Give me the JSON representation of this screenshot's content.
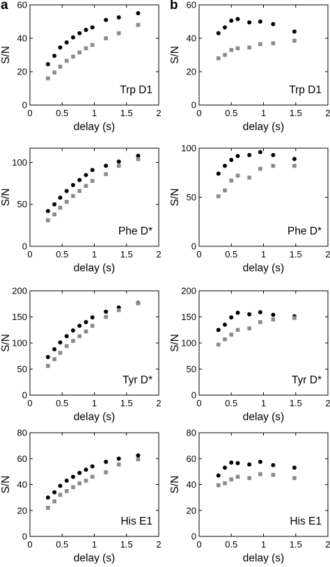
{
  "panel_labels": [
    "a",
    "b"
  ],
  "chart_data": [
    {
      "type": "scatter",
      "column": 0,
      "row": 0,
      "annotation": "Trp D1",
      "xlabel": "delay (s)",
      "ylabel": "S/N",
      "xlim": [
        0,
        2
      ],
      "ylim": [
        0,
        60
      ],
      "xticks": [
        0,
        0.5,
        1,
        1.5,
        2
      ],
      "xtick_labels": [
        "0",
        "0.5",
        "1",
        "1.5",
        "2"
      ],
      "yticks": [
        0,
        20,
        40,
        60
      ],
      "ytick_labels": [
        "0",
        "20",
        "40",
        "60"
      ],
      "series": [
        {
          "marker": "circle",
          "color": "#000000",
          "x": [
            0.28,
            0.38,
            0.47,
            0.57,
            0.67,
            0.77,
            0.87,
            0.97,
            1.18,
            1.38,
            1.68
          ],
          "y": [
            24.5,
            29.5,
            34.5,
            37.5,
            40.5,
            43,
            45,
            46.5,
            51,
            52.5,
            55
          ]
        },
        {
          "marker": "square",
          "color": "#8a8a8a",
          "x": [
            0.28,
            0.38,
            0.47,
            0.57,
            0.67,
            0.77,
            0.87,
            0.97,
            1.18,
            1.38,
            1.68
          ],
          "y": [
            16,
            19.5,
            23,
            26.5,
            29,
            31.5,
            34,
            36,
            40,
            43,
            48
          ]
        }
      ]
    },
    {
      "type": "scatter",
      "column": 1,
      "row": 0,
      "annotation": "Trp D1",
      "xlabel": "delay (s)",
      "ylabel": "S/N",
      "xlim": [
        0,
        2
      ],
      "ylim": [
        0,
        60
      ],
      "xticks": [
        0,
        0.5,
        1,
        1.5,
        2
      ],
      "xtick_labels": [
        "0",
        "0.5",
        "1",
        "1.5",
        "2"
      ],
      "yticks": [
        0,
        20,
        40,
        60
      ],
      "ytick_labels": [
        "0",
        "20",
        "40",
        "60"
      ],
      "series": [
        {
          "marker": "circle",
          "color": "#000000",
          "x": [
            0.3,
            0.4,
            0.5,
            0.6,
            0.78,
            0.95,
            1.15,
            1.48
          ],
          "y": [
            43,
            46.5,
            50.5,
            51.5,
            49.5,
            50,
            48.5,
            44
          ]
        },
        {
          "marker": "square",
          "color": "#8a8a8a",
          "x": [
            0.3,
            0.4,
            0.5,
            0.6,
            0.78,
            0.95,
            1.15,
            1.48
          ],
          "y": [
            28,
            30,
            33,
            34,
            34.5,
            36.5,
            37,
            38.5
          ]
        }
      ]
    },
    {
      "type": "scatter",
      "column": 0,
      "row": 1,
      "annotation": "Phe D*",
      "xlabel": "delay (s)",
      "ylabel": "S/N",
      "xlim": [
        0,
        2
      ],
      "ylim": [
        0,
        117
      ],
      "xticks": [
        0,
        0.5,
        1,
        1.5,
        2
      ],
      "xtick_labels": [
        "0",
        "0.5",
        "1",
        "1.5",
        "2"
      ],
      "yticks": [
        0,
        50,
        100
      ],
      "ytick_labels": [
        "0",
        "50",
        "100"
      ],
      "series": [
        {
          "marker": "circle",
          "color": "#000000",
          "x": [
            0.28,
            0.38,
            0.47,
            0.57,
            0.67,
            0.77,
            0.87,
            0.97,
            1.18,
            1.38,
            1.68
          ],
          "y": [
            42,
            50,
            58,
            66,
            73,
            79,
            85,
            91,
            96,
            101,
            108
          ]
        },
        {
          "marker": "square",
          "color": "#8a8a8a",
          "x": [
            0.28,
            0.38,
            0.47,
            0.57,
            0.67,
            0.77,
            0.87,
            0.97,
            1.18,
            1.38,
            1.68
          ],
          "y": [
            31,
            38,
            46,
            53,
            60,
            66,
            72,
            78,
            86,
            96,
            104
          ]
        }
      ]
    },
    {
      "type": "scatter",
      "column": 1,
      "row": 1,
      "annotation": "Phe D*",
      "xlabel": "delay (s)",
      "ylabel": "S/N",
      "xlim": [
        0,
        2
      ],
      "ylim": [
        0,
        100
      ],
      "xticks": [
        0,
        0.5,
        1,
        1.5,
        2
      ],
      "xtick_labels": [
        "0",
        "0.5",
        "1",
        "1.5",
        "2"
      ],
      "yticks": [
        0,
        50,
        100
      ],
      "ytick_labels": [
        "0",
        "50",
        "100"
      ],
      "series": [
        {
          "marker": "circle",
          "color": "#000000",
          "x": [
            0.3,
            0.4,
            0.5,
            0.6,
            0.78,
            0.95,
            1.15,
            1.48
          ],
          "y": [
            74,
            82,
            88,
            92,
            93,
            96,
            93,
            89
          ]
        },
        {
          "marker": "square",
          "color": "#8a8a8a",
          "x": [
            0.3,
            0.4,
            0.5,
            0.6,
            0.78,
            0.95,
            1.15,
            1.48
          ],
          "y": [
            51,
            57,
            67,
            72,
            70,
            79,
            82,
            82
          ]
        }
      ]
    },
    {
      "type": "scatter",
      "column": 0,
      "row": 2,
      "annotation": "Tyr D*",
      "xlabel": "delay (s)",
      "ylabel": "S/N",
      "xlim": [
        0,
        2
      ],
      "ylim": [
        0,
        200
      ],
      "xticks": [
        0,
        0.5,
        1,
        1.5,
        2
      ],
      "xtick_labels": [
        "0",
        "0.5",
        "1",
        "1.5",
        "2"
      ],
      "yticks": [
        0,
        50,
        100,
        150,
        200
      ],
      "ytick_labels": [
        "0",
        "50",
        "100",
        "150",
        "200"
      ],
      "series": [
        {
          "marker": "circle",
          "color": "#000000",
          "x": [
            0.28,
            0.38,
            0.47,
            0.57,
            0.67,
            0.77,
            0.87,
            0.97,
            1.18,
            1.38,
            1.68
          ],
          "y": [
            73,
            88,
            101,
            113,
            124,
            133,
            140,
            149,
            160,
            168,
            177
          ]
        },
        {
          "marker": "square",
          "color": "#8a8a8a",
          "x": [
            0.28,
            0.38,
            0.47,
            0.57,
            0.67,
            0.77,
            0.87,
            0.97,
            1.18,
            1.38,
            1.68
          ],
          "y": [
            56,
            69,
            81,
            94,
            104,
            113,
            122,
            133,
            150,
            163,
            176
          ]
        }
      ]
    },
    {
      "type": "scatter",
      "column": 1,
      "row": 2,
      "annotation": "Tyr D*",
      "xlabel": "delay (s)",
      "ylabel": "S/N",
      "xlim": [
        0,
        2
      ],
      "ylim": [
        0,
        200
      ],
      "xticks": [
        0,
        0.5,
        1,
        1.5,
        2
      ],
      "xtick_labels": [
        "0",
        "0.5",
        "1",
        "1.5",
        "2"
      ],
      "yticks": [
        0,
        50,
        100,
        150,
        200
      ],
      "ytick_labels": [
        "0",
        "50",
        "100",
        "150",
        "200"
      ],
      "series": [
        {
          "marker": "circle",
          "color": "#000000",
          "x": [
            0.3,
            0.4,
            0.5,
            0.6,
            0.78,
            0.95,
            1.15,
            1.48
          ],
          "y": [
            125,
            135,
            149,
            158,
            155,
            159,
            154,
            151
          ]
        },
        {
          "marker": "square",
          "color": "#8a8a8a",
          "x": [
            0.3,
            0.4,
            0.5,
            0.6,
            0.78,
            0.95,
            1.15,
            1.48
          ],
          "y": [
            97,
            107,
            116,
            125,
            128,
            140,
            145,
            148
          ]
        }
      ]
    },
    {
      "type": "scatter",
      "column": 0,
      "row": 3,
      "annotation": "His E1",
      "xlabel": "delay (s)",
      "ylabel": "S/N",
      "xlim": [
        0,
        2
      ],
      "ylim": [
        0,
        80
      ],
      "xticks": [
        0,
        0.5,
        1,
        1.5,
        2
      ],
      "xtick_labels": [
        "0",
        "0.5",
        "1",
        "1.5",
        "2"
      ],
      "yticks": [
        0,
        20,
        40,
        60,
        80
      ],
      "ytick_labels": [
        "0",
        "20",
        "40",
        "60",
        "80"
      ],
      "series": [
        {
          "marker": "circle",
          "color": "#000000",
          "x": [
            0.28,
            0.38,
            0.47,
            0.57,
            0.67,
            0.77,
            0.87,
            0.97,
            1.18,
            1.38,
            1.68
          ],
          "y": [
            30,
            34,
            39,
            43,
            46,
            49,
            51.5,
            54,
            57.5,
            60,
            62.5
          ]
        },
        {
          "marker": "square",
          "color": "#8a8a8a",
          "x": [
            0.28,
            0.38,
            0.47,
            0.57,
            0.67,
            0.77,
            0.87,
            0.97,
            1.18,
            1.38,
            1.68
          ],
          "y": [
            22,
            27,
            32,
            35,
            38,
            41,
            43,
            46,
            49.5,
            55.5,
            59.5
          ]
        }
      ]
    },
    {
      "type": "scatter",
      "column": 1,
      "row": 3,
      "annotation": "His E1",
      "xlabel": "delay (s)",
      "ylabel": "S/N",
      "xlim": [
        0,
        2
      ],
      "ylim": [
        0,
        80
      ],
      "xticks": [
        0,
        0.5,
        1,
        1.5,
        2
      ],
      "xtick_labels": [
        "0",
        "0.5",
        "1",
        "1.5",
        "2"
      ],
      "yticks": [
        0,
        20,
        40,
        60,
        80
      ],
      "ytick_labels": [
        "0",
        "20",
        "40",
        "60",
        "80"
      ],
      "series": [
        {
          "marker": "circle",
          "color": "#000000",
          "x": [
            0.3,
            0.4,
            0.5,
            0.6,
            0.78,
            0.95,
            1.15,
            1.48
          ],
          "y": [
            47,
            53,
            57,
            56.5,
            55.5,
            57.5,
            55,
            53
          ]
        },
        {
          "marker": "square",
          "color": "#8a8a8a",
          "x": [
            0.3,
            0.4,
            0.5,
            0.6,
            0.78,
            0.95,
            1.15,
            1.48
          ],
          "y": [
            39.5,
            41,
            44,
            46,
            45,
            48,
            47.5,
            45
          ]
        }
      ]
    }
  ]
}
